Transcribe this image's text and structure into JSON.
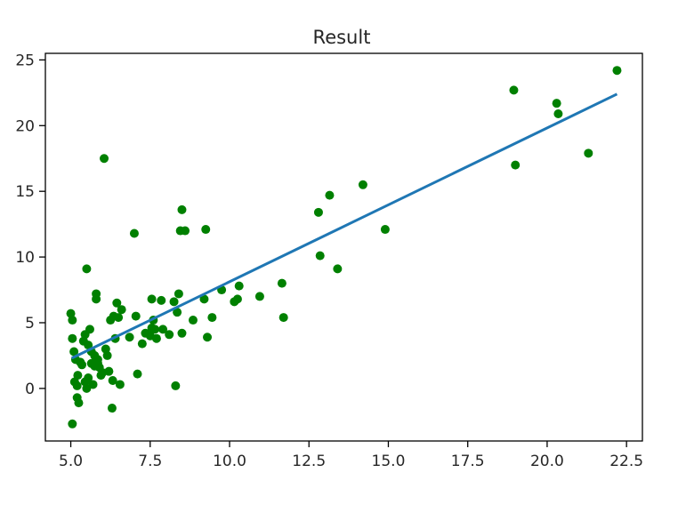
{
  "chart_data": {
    "type": "scatter",
    "title": "Result",
    "xlabel": "",
    "ylabel": "",
    "xlim": [
      4.2,
      23.0
    ],
    "ylim": [
      -4.0,
      25.5
    ],
    "x_ticks": [
      "5.0",
      "7.5",
      "10.0",
      "12.5",
      "15.0",
      "17.5",
      "20.0",
      "22.5"
    ],
    "y_ticks": [
      "0",
      "5",
      "10",
      "15",
      "20",
      "25"
    ],
    "grid": false,
    "legend": "none",
    "series": [
      {
        "kind": "points",
        "color": "#008000",
        "x": [
          5.0,
          5.05,
          5.05,
          5.05,
          5.1,
          5.12,
          5.15,
          5.2,
          5.2,
          5.22,
          5.25,
          5.3,
          5.35,
          5.4,
          5.45,
          5.45,
          5.5,
          5.5,
          5.55,
          5.55,
          5.6,
          5.65,
          5.65,
          5.7,
          5.75,
          5.75,
          5.8,
          5.8,
          5.85,
          5.85,
          5.9,
          5.95,
          6.0,
          6.05,
          6.1,
          6.15,
          6.2,
          6.25,
          6.3,
          6.32,
          6.35,
          6.4,
          6.45,
          6.5,
          6.55,
          6.6,
          6.85,
          7.0,
          7.05,
          7.1,
          7.25,
          7.35,
          7.5,
          7.55,
          7.55,
          7.6,
          7.65,
          7.7,
          7.85,
          7.9,
          8.1,
          8.25,
          8.3,
          8.35,
          8.4,
          8.45,
          8.5,
          8.5,
          8.6,
          8.85,
          9.2,
          9.25,
          9.3,
          9.45,
          9.75,
          10.15,
          10.25,
          10.3,
          10.95,
          11.65,
          11.7,
          12.8,
          12.85,
          13.15,
          13.4,
          14.2,
          14.9,
          18.95,
          19.0,
          20.3,
          20.35,
          21.3,
          22.2
        ],
        "y": [
          5.7,
          -2.7,
          5.2,
          3.8,
          2.8,
          0.5,
          2.2,
          -0.7,
          0.2,
          1.0,
          -1.1,
          2.0,
          1.8,
          3.6,
          0.5,
          4.1,
          9.1,
          0.0,
          0.8,
          3.3,
          4.5,
          2.8,
          1.9,
          0.3,
          1.7,
          2.5,
          7.2,
          6.8,
          2.2,
          1.9,
          1.6,
          1.0,
          1.2,
          17.5,
          3.0,
          2.5,
          1.3,
          5.2,
          -1.5,
          0.6,
          5.5,
          3.8,
          6.5,
          5.4,
          0.3,
          6.0,
          3.9,
          11.8,
          5.5,
          1.1,
          3.4,
          4.2,
          4.0,
          6.8,
          4.6,
          5.2,
          4.5,
          3.8,
          6.7,
          4.5,
          4.1,
          6.6,
          0.2,
          5.8,
          7.2,
          12.0,
          13.6,
          4.2,
          12.0,
          5.2,
          6.8,
          12.1,
          3.9,
          5.4,
          7.5,
          6.6,
          6.8,
          7.8,
          7.0,
          8.0,
          5.4,
          13.4,
          10.1,
          14.7,
          9.1,
          15.5,
          12.1,
          22.7,
          17.0,
          21.7,
          20.9,
          17.9,
          24.2
        ]
      },
      {
        "kind": "line",
        "color": "#1f77b4",
        "x": [
          5.03,
          22.2
        ],
        "y": [
          2.3,
          22.4
        ]
      }
    ]
  }
}
